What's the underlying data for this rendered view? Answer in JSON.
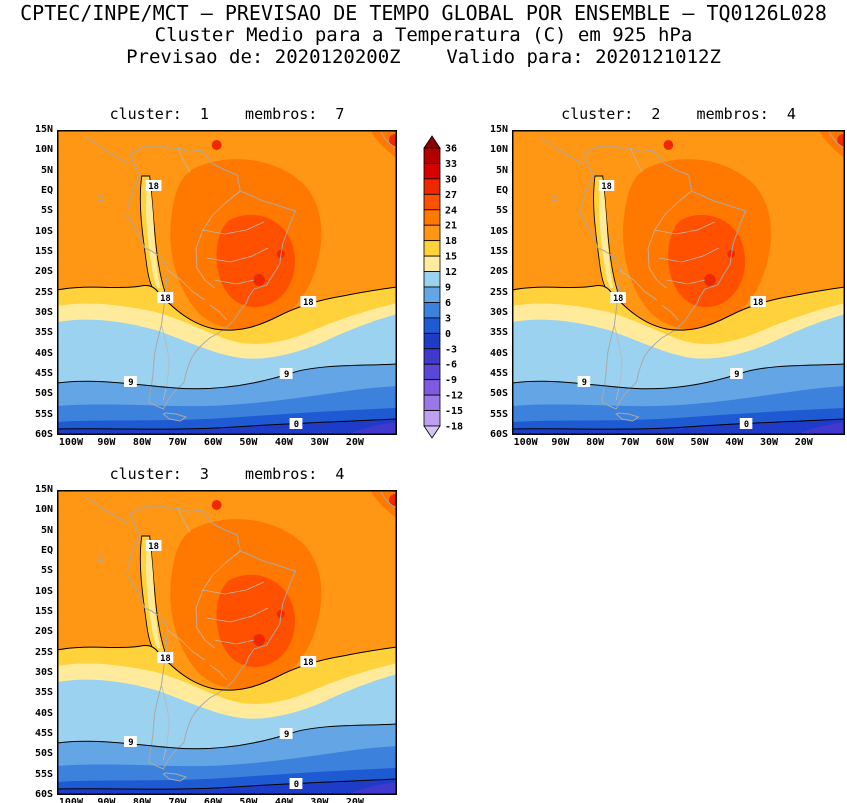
{
  "header": {
    "line1": "CPTEC/INPE/MCT – PREVISAO DE TEMPO GLOBAL POR ENSEMBLE – TQ0126L028",
    "line2": "Cluster Medio para a Temperatura (C) em 925 hPa",
    "line3": "Previsao de: 2020120200Z    Valido para: 2020121012Z"
  },
  "panels": [
    {
      "title": "cluster:  1    membros:  7",
      "cluster": "1",
      "membros": "7"
    },
    {
      "title": "cluster:  2    membros:  4",
      "cluster": "2",
      "membros": "4"
    },
    {
      "title": "cluster:  3    membros:  4",
      "cluster": "3",
      "membros": "4"
    }
  ],
  "axes": {
    "lat_ticks": [
      "15N",
      "10N",
      "5N",
      "EQ",
      "5S",
      "10S",
      "15S",
      "20S",
      "25S",
      "30S",
      "35S",
      "40S",
      "45S",
      "50S",
      "55S",
      "60S"
    ],
    "lon_ticks": [
      "100W",
      "90W",
      "80W",
      "70W",
      "60W",
      "50W",
      "40W",
      "30W",
      "20W"
    ]
  },
  "colorbar": {
    "labels": [
      36,
      33,
      30,
      27,
      24,
      21,
      18,
      15,
      12,
      9,
      6,
      3,
      0,
      -3,
      -6,
      -9,
      -12,
      -15,
      -18
    ],
    "colors": [
      "#8c0000",
      "#b40000",
      "#d70000",
      "#f02800",
      "#ff5000",
      "#ff7800",
      "#ff9614",
      "#ffd23c",
      "#ffeb9b",
      "#9bd2f0",
      "#64a5e6",
      "#3c82dc",
      "#1e5ad2",
      "#1e3cc8",
      "#4138cd",
      "#5a46d7",
      "#7d5ae1",
      "#9b78e8",
      "#bea0f0",
      "#d7c3f7"
    ]
  },
  "map_labels": {
    "c18": "18",
    "c9": "9",
    "c0": "0"
  },
  "chart_data": {
    "type": "heatmap",
    "subtype": "filled-contour-map",
    "title": "Cluster Medio para a Temperatura (C) em 925 hPa",
    "model": "CPTEC/INPE/MCT PREVISAO DE TEMPO GLOBAL POR ENSEMBLE TQ0126L028",
    "init_time": "2020120200Z",
    "valid_time": "2020121012Z",
    "variable": "Temperatura",
    "units": "C",
    "level_hPa": 925,
    "contour_interval": 3,
    "scale_levels": [
      36,
      33,
      30,
      27,
      24,
      21,
      18,
      15,
      12,
      9,
      6,
      3,
      0,
      -3,
      -6,
      -9,
      -12,
      -15,
      -18
    ],
    "labeled_contours": [
      18,
      9,
      0
    ],
    "lon_ticks": [
      "100W",
      "90W",
      "80W",
      "70W",
      "60W",
      "50W",
      "40W",
      "30W",
      "20W"
    ],
    "lat_ticks": [
      "15N",
      "10N",
      "5N",
      "EQ",
      "5S",
      "10S",
      "15S",
      "20S",
      "25S",
      "30S",
      "35S",
      "40S",
      "45S",
      "50S",
      "55S",
      "60S"
    ],
    "panels": [
      {
        "cluster": 1,
        "membros": 7,
        "pattern": "warm (>24C) core over central Brazil, 18C contour around tropics and along Andes, cold (<9C) south of ~35S, <0C near 60S"
      },
      {
        "cluster": 2,
        "membros": 4,
        "pattern": "similar warm core over central Brazil, slightly stronger interior maximum"
      },
      {
        "cluster": 3,
        "membros": 4,
        "pattern": "similar warm core over central Brazil with southern cold tongue"
      }
    ],
    "legend_position": "between panel 1 and panel 2, vertical color bar with arrow caps"
  }
}
